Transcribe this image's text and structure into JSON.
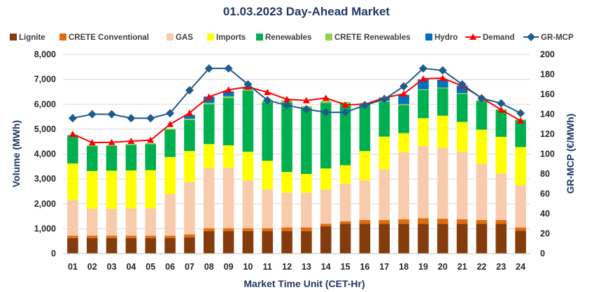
{
  "chart_data": {
    "type": "bar",
    "subtype": "stacked-bar-with-lines",
    "title": "01.03.2023  Day-Ahead Market",
    "xlabel": "Market Time Unit (CET-Hr)",
    "ylabel": "Volume (MWh)",
    "y2label": "GR-MCP (€/MWh)",
    "ylim": [
      0,
      8000
    ],
    "y2lim": [
      0,
      200
    ],
    "yticks": [
      "0",
      "1,000",
      "2,000",
      "3,000",
      "4,000",
      "5,000",
      "6,000",
      "7,000",
      "8,000"
    ],
    "y2ticks": [
      "0",
      "20",
      "40",
      "60",
      "80",
      "100",
      "120",
      "140",
      "160",
      "180",
      "200"
    ],
    "grid": true,
    "legend_position": "top",
    "categories": [
      "01",
      "02",
      "03",
      "04",
      "05",
      "06",
      "07",
      "08",
      "09",
      "10",
      "11",
      "12",
      "13",
      "14",
      "15",
      "16",
      "17",
      "18",
      "19",
      "20",
      "21",
      "22",
      "23",
      "24"
    ],
    "series": [
      {
        "name": "Lignite",
        "kind": "bar",
        "color": "#843C0C",
        "values": [
          620,
          620,
          620,
          620,
          620,
          620,
          650,
          900,
          900,
          900,
          900,
          900,
          900,
          1100,
          1200,
          1200,
          1200,
          1200,
          1200,
          1200,
          1200,
          1200,
          1200,
          920
        ]
      },
      {
        "name": "CRETE Conventional",
        "kind": "bar",
        "color": "#E36C0A",
        "values": [
          100,
          100,
          100,
          100,
          100,
          100,
          120,
          120,
          120,
          120,
          120,
          150,
          150,
          100,
          100,
          150,
          150,
          180,
          220,
          200,
          180,
          150,
          150,
          130
        ]
      },
      {
        "name": "GAS",
        "kind": "bar",
        "color": "#F8CBAD",
        "values": [
          1430,
          1080,
          1080,
          1090,
          1100,
          1680,
          2100,
          2430,
          2430,
          1920,
          1560,
          1400,
          1400,
          1370,
          1510,
          1590,
          2030,
          2700,
          2900,
          2850,
          2710,
          2250,
          1870,
          1700
        ]
      },
      {
        "name": "Imports",
        "kind": "bar",
        "color": "#FFFF00",
        "values": [
          1470,
          1520,
          1530,
          1530,
          1530,
          1480,
          1250,
          950,
          900,
          1150,
          1150,
          830,
          750,
          850,
          740,
          1180,
          1320,
          760,
          1120,
          1290,
          1200,
          1380,
          1470,
          1530
        ]
      },
      {
        "name": "Renewables",
        "kind": "bar",
        "color": "#00B050",
        "values": [
          1120,
          1000,
          1000,
          1030,
          1050,
          1100,
          1250,
          1600,
          1900,
          2450,
          2350,
          2800,
          2650,
          2630,
          2470,
          1880,
          1400,
          1130,
          1130,
          1100,
          1130,
          1150,
          1080,
          1080
        ]
      },
      {
        "name": "CRETE Renewables",
        "kind": "bar",
        "color": "#92D050",
        "values": [
          30,
          30,
          30,
          30,
          30,
          40,
          50,
          60,
          70,
          80,
          80,
          80,
          80,
          80,
          70,
          60,
          50,
          40,
          30,
          30,
          30,
          30,
          30,
          30
        ]
      },
      {
        "name": "Hydro",
        "kind": "bar",
        "color": "#0070C0",
        "values": [
          0,
          0,
          0,
          0,
          0,
          0,
          150,
          250,
          200,
          50,
          0,
          0,
          0,
          0,
          0,
          0,
          120,
          370,
          400,
          320,
          300,
          0,
          0,
          0
        ]
      },
      {
        "name": "Demand",
        "kind": "line",
        "axis": "left",
        "color": "#FF0000",
        "marker": "triangle",
        "values": [
          4800,
          4460,
          4470,
          4520,
          4560,
          5200,
          5650,
          6300,
          6580,
          6700,
          6480,
          6200,
          6150,
          6250,
          5980,
          6000,
          6260,
          6420,
          7020,
          7050,
          6740,
          6260,
          5780,
          5340
        ]
      },
      {
        "name": "GR-MCP",
        "kind": "line",
        "axis": "right",
        "color": "#1F5B8C",
        "marker": "diamond",
        "values": [
          136,
          140,
          140,
          136,
          136,
          141,
          164,
          186,
          186,
          170,
          154,
          149,
          145,
          142,
          142,
          149,
          155,
          168,
          186,
          184,
          170,
          156,
          151,
          141
        ]
      }
    ]
  }
}
